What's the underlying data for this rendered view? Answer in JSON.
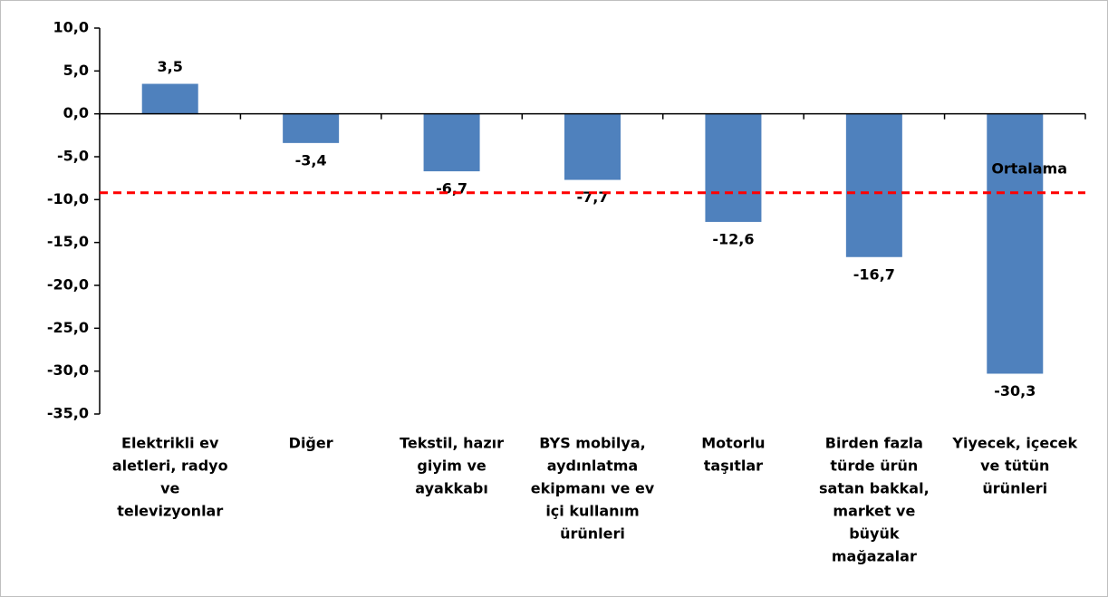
{
  "chart_data": {
    "type": "bar",
    "categories": [
      [
        "Elektrikli ev",
        "aletleri, radyo",
        "ve",
        "televizyonlar"
      ],
      [
        "Diğer"
      ],
      [
        "Tekstil, hazır",
        "giyim ve",
        "ayakkabı"
      ],
      [
        "BYS mobilya,",
        "aydınlatma",
        "ekipmanı ve ev",
        "içi kullanım",
        "ürünleri"
      ],
      [
        "Motorlu",
        "taşıtlar"
      ],
      [
        "Birden fazla",
        "türde ürün",
        "satan bakkal,",
        "market ve",
        "büyük",
        "mağazalar"
      ],
      [
        "Yiyecek, içecek",
        "ve tütün",
        "ürünleri"
      ]
    ],
    "values": [
      3.5,
      -3.4,
      -6.7,
      -7.7,
      -12.6,
      -16.7,
      -30.3
    ],
    "value_labels": [
      "3,5",
      "-3,4",
      "-6,7",
      "-7,7",
      "-12,6",
      "-16,7",
      "-30,3"
    ],
    "color": "#4f81bd",
    "ylim": [
      -35,
      10
    ],
    "yticks": [
      {
        "value": 10,
        "label": "10,0"
      },
      {
        "value": 5,
        "label": "5,0"
      },
      {
        "value": 0,
        "label": "0,0"
      },
      {
        "value": -5,
        "label": "-5,0"
      },
      {
        "value": -10,
        "label": "-10,0"
      },
      {
        "value": -15,
        "label": "-15,0"
      },
      {
        "value": -20,
        "label": "-20,0"
      },
      {
        "value": -25,
        "label": "-25,0"
      },
      {
        "value": -30,
        "label": "-30,0"
      },
      {
        "value": -35,
        "label": "-35,0"
      }
    ],
    "average": {
      "value": -9.2,
      "label": "Ortalama",
      "color": "#ff0000"
    }
  }
}
